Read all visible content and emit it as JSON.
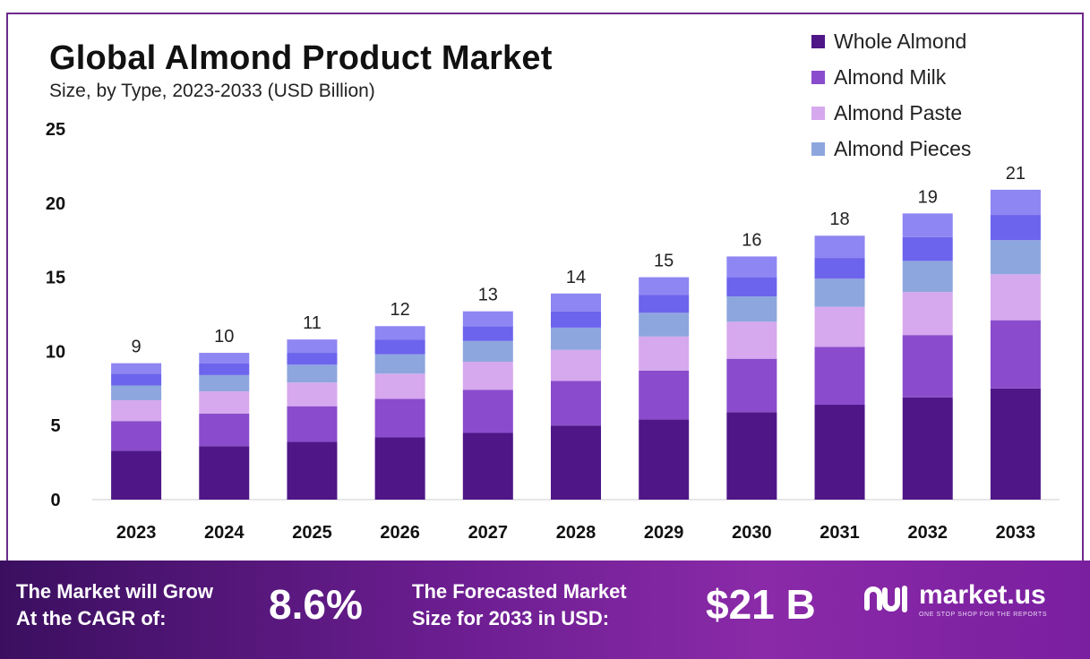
{
  "chart_data": {
    "type": "bar",
    "stacked": true,
    "title": "Global Almond Product Market",
    "subtitle": "Size, by Type, 2023-2033 (USD Billion)",
    "categories": [
      "2023",
      "2024",
      "2025",
      "2026",
      "2027",
      "2028",
      "2029",
      "2030",
      "2031",
      "2032",
      "2033"
    ],
    "series": [
      {
        "name": "Whole Almond",
        "color": "#4f1688",
        "values": [
          3.3,
          3.6,
          3.9,
          4.2,
          4.5,
          5.0,
          5.4,
          5.9,
          6.4,
          6.9,
          7.5
        ]
      },
      {
        "name": "Almond Milk",
        "color": "#8a4ccc",
        "values": [
          2.0,
          2.2,
          2.4,
          2.6,
          2.9,
          3.0,
          3.3,
          3.6,
          3.9,
          4.2,
          4.6
        ]
      },
      {
        "name": "Almond Paste",
        "color": "#d6a8ee",
        "values": [
          1.4,
          1.5,
          1.6,
          1.7,
          1.9,
          2.1,
          2.3,
          2.5,
          2.7,
          2.9,
          3.1
        ]
      },
      {
        "name": "Almond Pieces",
        "color": "#8ea6de",
        "values": [
          1.0,
          1.1,
          1.2,
          1.3,
          1.4,
          1.5,
          1.6,
          1.7,
          1.9,
          2.1,
          2.3
        ]
      },
      {
        "name": "",
        "color": "#6c64ec",
        "values": [
          0.8,
          0.8,
          0.8,
          1.0,
          1.0,
          1.1,
          1.2,
          1.3,
          1.4,
          1.6,
          1.7
        ]
      },
      {
        "name": "",
        "color": "#8e86f2",
        "values": [
          0.7,
          0.7,
          0.9,
          0.9,
          1.0,
          1.2,
          1.2,
          1.4,
          1.5,
          1.6,
          1.7
        ]
      }
    ],
    "totals": [
      "9",
      "10",
      "11",
      "12",
      "13",
      "14",
      "15",
      "16",
      "18",
      "19",
      "21"
    ],
    "yticks": [
      "0",
      "5",
      "10",
      "15",
      "20",
      "25"
    ],
    "ylim": [
      0,
      25
    ],
    "xlabel": "",
    "ylabel": "",
    "legend_position": "top-right",
    "grid": false
  },
  "legend": [
    {
      "label": "Whole Almond",
      "color": "#4f1688"
    },
    {
      "label": "Almond Milk",
      "color": "#8a4ccc"
    },
    {
      "label": "Almond Paste",
      "color": "#d6a8ee"
    },
    {
      "label": "Almond Pieces",
      "color": "#8ea6de"
    }
  ],
  "footer": {
    "cagr_label_line1": "The Market will Grow",
    "cagr_label_line2": "At the CAGR of:",
    "cagr_value": "8.6%",
    "forecast_label_line1": "The Forecasted Market",
    "forecast_label_line2": "Size for 2033 in USD:",
    "forecast_value": "$21 B",
    "brand_name": "market.us",
    "brand_tagline": "ONE STOP SHOP FOR THE REPORTS"
  }
}
